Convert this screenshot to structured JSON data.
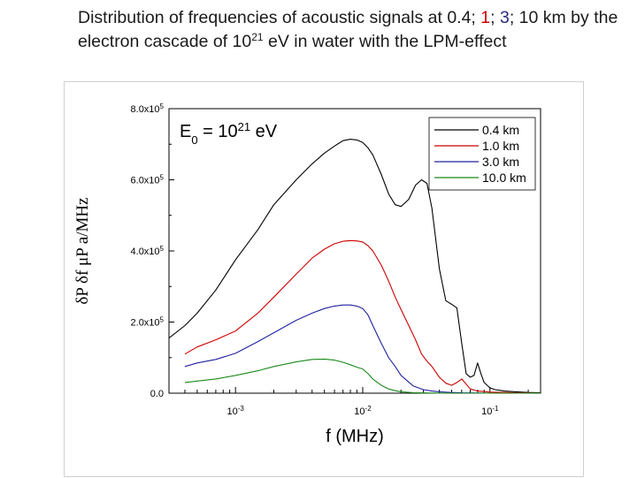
{
  "slide": {
    "title_prefix": "Distribution of frequencies of acoustic signals at ",
    "d1": "0.4",
    "sep1": "; ",
    "d2": "1",
    "sep2": "; ",
    "d3": "3",
    "title_mid": "; 10 km by the electron cascade of 10",
    "title_exp": "21",
    "title_suffix": " eV in water with the LPM-effect",
    "colors": {
      "d1": "#1a1a1a",
      "d2": "#cc0000",
      "d3": "#2a2a80"
    }
  },
  "chart_data": {
    "type": "line",
    "xlabel": "f (MHz)",
    "ylabel": "δP δf μP a/MHz",
    "x_scale": "log",
    "xlim": [
      0.0003,
      0.25
    ],
    "ylim": [
      0,
      800000
    ],
    "x_ticks": [
      {
        "value": 0.001,
        "label": "10",
        "exp": "-3"
      },
      {
        "value": 0.01,
        "label": "10",
        "exp": "-2"
      },
      {
        "value": 0.1,
        "label": "10",
        "exp": "-1"
      }
    ],
    "y_ticks": [
      {
        "value": 0,
        "label": "0.0"
      },
      {
        "value": 200000,
        "label": "2.0x10",
        "exp": "5"
      },
      {
        "value": 400000,
        "label": "4.0x10",
        "exp": "5"
      },
      {
        "value": 600000,
        "label": "6.0x10",
        "exp": "5"
      },
      {
        "value": 800000,
        "label": "8.0x10",
        "exp": "5"
      }
    ],
    "annotation": {
      "base": "E",
      "sub": "0",
      "mid": " = 10",
      "exp": "21",
      "tail": " eV"
    },
    "legend_position": "top-right",
    "series": [
      {
        "name": "0.4 km",
        "color": "#000000",
        "x": [
          0.0003,
          0.0004,
          0.0005,
          0.0007,
          0.001,
          0.0015,
          0.002,
          0.003,
          0.004,
          0.005,
          0.006,
          0.007,
          0.008,
          0.009,
          0.01,
          0.011,
          0.012,
          0.014,
          0.016,
          0.018,
          0.02,
          0.023,
          0.026,
          0.029,
          0.032,
          0.035,
          0.04,
          0.045,
          0.05,
          0.055,
          0.06,
          0.065,
          0.07,
          0.075,
          0.08,
          0.085,
          0.09,
          0.1,
          0.11,
          0.13,
          0.16,
          0.2,
          0.25
        ],
        "y": [
          155000,
          190000,
          225000,
          290000,
          375000,
          460000,
          530000,
          600000,
          645000,
          675000,
          695000,
          710000,
          714000,
          712000,
          705000,
          690000,
          670000,
          615000,
          560000,
          530000,
          525000,
          545000,
          585000,
          600000,
          590000,
          520000,
          350000,
          260000,
          250000,
          240000,
          140000,
          55000,
          45000,
          50000,
          85000,
          55000,
          30000,
          15000,
          10000,
          6000,
          4000,
          2000,
          1000
        ]
      },
      {
        "name": "1.0 km",
        "color": "#cc0000",
        "x": [
          0.0004,
          0.0005,
          0.0007,
          0.001,
          0.0015,
          0.002,
          0.003,
          0.004,
          0.005,
          0.006,
          0.007,
          0.008,
          0.009,
          0.01,
          0.011,
          0.012,
          0.014,
          0.016,
          0.018,
          0.02,
          0.023,
          0.026,
          0.029,
          0.032,
          0.035,
          0.04,
          0.045,
          0.05,
          0.055,
          0.06,
          0.07,
          0.08,
          0.1,
          0.13,
          0.16,
          0.2,
          0.25
        ],
        "y": [
          110000,
          130000,
          150000,
          175000,
          225000,
          270000,
          335000,
          380000,
          405000,
          420000,
          427000,
          429000,
          428000,
          425000,
          415000,
          400000,
          360000,
          315000,
          270000,
          235000,
          190000,
          150000,
          110000,
          90000,
          75000,
          45000,
          28000,
          22000,
          30000,
          40000,
          12000,
          6000,
          3000,
          2000,
          1000,
          500,
          0
        ]
      },
      {
        "name": "3.0 km",
        "color": "#2020a0",
        "x": [
          0.0004,
          0.0005,
          0.0007,
          0.001,
          0.0015,
          0.002,
          0.003,
          0.004,
          0.005,
          0.006,
          0.007,
          0.008,
          0.009,
          0.01,
          0.011,
          0.012,
          0.014,
          0.016,
          0.018,
          0.02,
          0.025,
          0.03,
          0.035,
          0.04,
          0.05,
          0.06,
          0.08,
          0.1,
          0.15,
          0.25
        ],
        "y": [
          75000,
          85000,
          95000,
          112000,
          145000,
          170000,
          205000,
          225000,
          238000,
          245000,
          248000,
          248000,
          245000,
          238000,
          220000,
          190000,
          140000,
          100000,
          75000,
          50000,
          20000,
          10000,
          6000,
          4000,
          2000,
          1000,
          500,
          0,
          0,
          0
        ]
      },
      {
        "name": "10.0 km",
        "color": "#1a8a1a",
        "x": [
          0.0004,
          0.0005,
          0.0007,
          0.001,
          0.0015,
          0.002,
          0.003,
          0.004,
          0.005,
          0.006,
          0.007,
          0.008,
          0.009,
          0.01,
          0.011,
          0.012,
          0.014,
          0.016,
          0.018,
          0.02,
          0.025,
          0.03,
          0.04,
          0.06,
          0.1,
          0.25
        ],
        "y": [
          30000,
          34000,
          40000,
          50000,
          63000,
          75000,
          88000,
          95000,
          96000,
          93000,
          87000,
          80000,
          73000,
          68000,
          55000,
          40000,
          22000,
          12000,
          7000,
          4000,
          1500,
          800,
          300,
          0,
          0,
          0
        ]
      }
    ]
  }
}
